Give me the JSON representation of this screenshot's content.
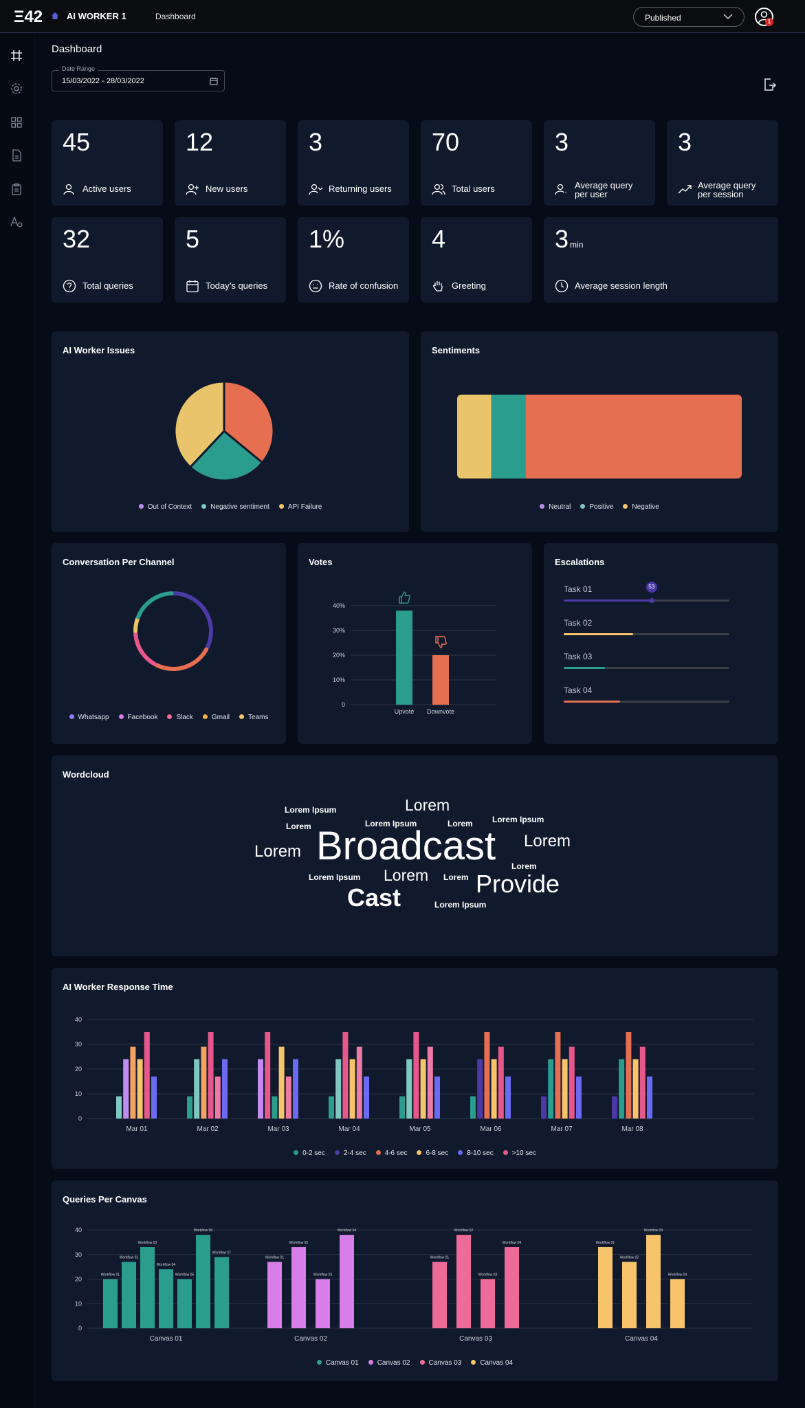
{
  "header": {
    "logo": "Ξ42",
    "app_name": "AI WORKER 1",
    "breadcrumb": "Dashboard",
    "status": "Published",
    "notification_count": "1",
    "icons": [
      "home-icon",
      "chevron-down-icon",
      "user-avatar-icon"
    ]
  },
  "sidebar": {
    "items": [
      {
        "icon": "frame-icon"
      },
      {
        "icon": "gear-icon"
      },
      {
        "icon": "grid-icon"
      },
      {
        "icon": "document-icon"
      },
      {
        "icon": "clipboard-icon"
      },
      {
        "icon": "font-settings-icon"
      }
    ]
  },
  "page": {
    "title": "Dashboard",
    "date_range_label": "Date Range",
    "date_range_value": "15/03/2022 - 28/03/2022"
  },
  "stats": [
    {
      "value": "45",
      "unit": "",
      "label": "Active users",
      "icon": "user-icon"
    },
    {
      "value": "12",
      "unit": "",
      "label": "New users",
      "icon": "user-plus-icon"
    },
    {
      "value": "3",
      "unit": "",
      "label": "Returning users",
      "icon": "user-return-icon"
    },
    {
      "value": "70",
      "unit": "",
      "label": "Total users",
      "icon": "users-icon"
    },
    {
      "value": "3",
      "unit": "",
      "label": "Average query per user",
      "label_l1": "Average query",
      "label_l2": "per user",
      "icon": "user-query-icon"
    },
    {
      "value": "3",
      "unit": "",
      "label": "Average query per session",
      "label_l1": "Average query",
      "label_l2": "per session",
      "icon": "trend-up-icon"
    },
    {
      "value": "32",
      "unit": "",
      "label": "Total queries",
      "icon": "question-circle-icon"
    },
    {
      "value": "5",
      "unit": "",
      "label": "Today’s queries",
      "icon": "calendar-icon"
    },
    {
      "value": "1%",
      "unit": "",
      "label": "Rate of confusion",
      "icon": "confused-face-icon"
    },
    {
      "value": "4",
      "unit": "",
      "label": "Greeting",
      "icon": "wave-hand-icon"
    },
    {
      "value": "3",
      "unit": "min",
      "label": "Average session length",
      "icon": "clock-icon"
    }
  ],
  "colors": {
    "teal": "#2a9d8f",
    "orange": "#e76f51",
    "yellow": "#e9c46a",
    "purple": "#c08cf0",
    "violet": "#7f66f2",
    "indigo": "#4b3aa6",
    "pink": "#e8578a",
    "peach": "#f4a261"
  },
  "panels": {
    "issues_title": "AI Worker Issues",
    "sentiments_title": "Sentiments",
    "channel_title": "Conversation Per Channel",
    "votes_title": "Votes",
    "escalations_title": "Escalations",
    "wordcloud_title": "Wordcloud",
    "response_title": "AI Worker Response Time",
    "queries_title": "Queries Per Canvas"
  },
  "chart_data": [
    {
      "id": "issues",
      "type": "pie",
      "title": "AI Worker Issues",
      "labels": [
        "Out of Context",
        "Negative sentiment",
        "API Failure"
      ],
      "values": [
        36,
        26,
        38
      ],
      "colors": [
        "#e76f51",
        "#2a9d8f",
        "#e9c46a"
      ],
      "legend": [
        {
          "label": "Out of Context",
          "color": "#c08cf0"
        },
        {
          "label": "Negative sentiment",
          "color": "#7ec8c0"
        },
        {
          "label": "API Failure",
          "color": "#f7c46c"
        }
      ],
      "legend_position": "bottom"
    },
    {
      "id": "sentiments",
      "type": "bar",
      "title": "Sentiments",
      "stacked": true,
      "orientation": "horizontal",
      "categories": [
        "Neutral",
        "Positive",
        "Negative"
      ],
      "values": [
        12,
        12,
        76
      ],
      "colors": [
        "#e9c46a",
        "#2a9d8f",
        "#e76f51"
      ],
      "legend": [
        {
          "label": "Neutral",
          "color": "#c08cf0"
        },
        {
          "label": "Positive",
          "color": "#7ec8c0"
        },
        {
          "label": "Negative",
          "color": "#f7c46c"
        }
      ],
      "legend_position": "bottom"
    },
    {
      "id": "channels",
      "type": "pie",
      "donut": true,
      "title": "Conversation Per Channel",
      "labels": [
        "Whatsapp",
        "Facebook",
        "Slack",
        "Gmail",
        "Teams"
      ],
      "values": [
        33,
        25,
        17,
        6,
        19
      ],
      "colors": [
        "#4b3aa6",
        "#e76f51",
        "#e8578a",
        "#e9c46a",
        "#2a9d8f"
      ],
      "legend": [
        {
          "label": "Whatsapp",
          "color": "#8f7cf4"
        },
        {
          "label": "Facebook",
          "color": "#d77ee8"
        },
        {
          "label": "Slack",
          "color": "#ee6a98"
        },
        {
          "label": "Gmail",
          "color": "#f7b24f"
        },
        {
          "label": "Teams",
          "color": "#f7c46c"
        }
      ],
      "legend_position": "bottom"
    },
    {
      "id": "votes",
      "type": "bar",
      "title": "Votes",
      "categories": [
        "Upvote",
        "Downvote"
      ],
      "values": [
        38,
        20
      ],
      "colors": [
        "#2a9d8f",
        "#e76f51"
      ],
      "icons": [
        "thumbs-up-icon",
        "thumbs-down-icon"
      ],
      "yticks": [
        "0",
        "10%",
        "20%",
        "30%",
        "40%"
      ],
      "ylim": [
        0,
        40
      ],
      "grid": true
    },
    {
      "id": "response_time",
      "type": "bar",
      "title": "AI Worker Response Time",
      "categories": [
        "Mar 01",
        "Mar 02",
        "Mar 03",
        "Mar 04",
        "Mar 05",
        "Mar 06",
        "Mar 07",
        "Mar 08"
      ],
      "series_legend": [
        {
          "name": "0-2 sec",
          "color": "#2a9d8f"
        },
        {
          "name": "2-4 sec",
          "color": "#4b3aa6"
        },
        {
          "name": "4-6 sec",
          "color": "#e76f51"
        },
        {
          "name": "6-8 sec",
          "color": "#f7c46c"
        },
        {
          "name": "8-10 sec",
          "color": "#6a6af2"
        },
        {
          "name": ">10 sec",
          "color": "#e8578a"
        }
      ],
      "groups": [
        [
          {
            "v": 9,
            "c": "#7ec8c0"
          },
          {
            "v": 24,
            "c": "#c08cf0"
          },
          {
            "v": 29,
            "c": "#f4a261"
          },
          {
            "v": 24,
            "c": "#f7c46c"
          },
          {
            "v": 35,
            "c": "#e8578a"
          },
          {
            "v": 17,
            "c": "#6a6af2"
          }
        ],
        [
          {
            "v": 9,
            "c": "#2a9d8f"
          },
          {
            "v": 24,
            "c": "#7ec8c0"
          },
          {
            "v": 29,
            "c": "#f4a261"
          },
          {
            "v": 35,
            "c": "#e8578a"
          },
          {
            "v": 17,
            "c": "#ee7ba5"
          },
          {
            "v": 24,
            "c": "#6a6af2"
          }
        ],
        [
          {
            "v": 24,
            "c": "#c08cf0"
          },
          {
            "v": 35,
            "c": "#e8578a"
          },
          {
            "v": 9,
            "c": "#2a9d8f"
          },
          {
            "v": 29,
            "c": "#f7c46c"
          },
          {
            "v": 17,
            "c": "#ee7ba5"
          },
          {
            "v": 24,
            "c": "#6a6af2"
          }
        ],
        [
          {
            "v": 9,
            "c": "#2a9d8f"
          },
          {
            "v": 24,
            "c": "#7ec8c0"
          },
          {
            "v": 35,
            "c": "#e8578a"
          },
          {
            "v": 24,
            "c": "#f7c46c"
          },
          {
            "v": 29,
            "c": "#ee7ba5"
          },
          {
            "v": 17,
            "c": "#6a6af2"
          }
        ],
        [
          {
            "v": 9,
            "c": "#2a9d8f"
          },
          {
            "v": 24,
            "c": "#7ec8c0"
          },
          {
            "v": 35,
            "c": "#e8578a"
          },
          {
            "v": 24,
            "c": "#f7c46c"
          },
          {
            "v": 29,
            "c": "#ee7ba5"
          },
          {
            "v": 17,
            "c": "#6a6af2"
          }
        ],
        [
          {
            "v": 9,
            "c": "#2a9d8f"
          },
          {
            "v": 24,
            "c": "#4b3aa6"
          },
          {
            "v": 35,
            "c": "#e76f51"
          },
          {
            "v": 24,
            "c": "#f7c46c"
          },
          {
            "v": 29,
            "c": "#e8578a"
          },
          {
            "v": 17,
            "c": "#6a6af2"
          }
        ],
        [
          {
            "v": 9,
            "c": "#4b3aa6"
          },
          {
            "v": 24,
            "c": "#2a9d8f"
          },
          {
            "v": 35,
            "c": "#e76f51"
          },
          {
            "v": 24,
            "c": "#f7c46c"
          },
          {
            "v": 29,
            "c": "#e8578a"
          },
          {
            "v": 17,
            "c": "#6a6af2"
          }
        ],
        [
          {
            "v": 9,
            "c": "#4b3aa6"
          },
          {
            "v": 24,
            "c": "#2a9d8f"
          },
          {
            "v": 35,
            "c": "#e76f51"
          },
          {
            "v": 24,
            "c": "#f7c46c"
          },
          {
            "v": 29,
            "c": "#e8578a"
          },
          {
            "v": 17,
            "c": "#6a6af2"
          }
        ]
      ],
      "yticks": [
        "0",
        "10",
        "20",
        "30",
        "40"
      ],
      "ylim": [
        0,
        40
      ],
      "grid": true,
      "legend_position": "bottom"
    },
    {
      "id": "queries_per_canvas",
      "type": "bar",
      "title": "Queries Per Canvas",
      "categories": [
        "Canvas 01",
        "Canvas 02",
        "Canvas 03",
        "Canvas 04"
      ],
      "series_legend": [
        {
          "name": "Canvas 01",
          "color": "#2a9d8f"
        },
        {
          "name": "Canvas 02",
          "color": "#d77ee8"
        },
        {
          "name": "Canvas 03",
          "color": "#ee6a98"
        },
        {
          "name": "Canvas 04",
          "color": "#f7c46c"
        }
      ],
      "groups": [
        {
          "color": "#2a9d8f",
          "bars": [
            {
              "label": "Workflow 01",
              "v": 20
            },
            {
              "label": "Workflow 02",
              "v": 27
            },
            {
              "label": "Workflow 03",
              "v": 33
            },
            {
              "label": "Workflow 04",
              "v": 24
            },
            {
              "label": "Workflow 05",
              "v": 20
            },
            {
              "label": "Workflow 06",
              "v": 38
            },
            {
              "label": "Workflow 07",
              "v": 29
            }
          ]
        },
        {
          "color": "#d77ee8",
          "bars": [
            {
              "label": "Workflow 01",
              "v": 27
            },
            {
              "label": "Workflow 02",
              "v": 33
            },
            {
              "label": "Workflow 03",
              "v": 20
            },
            {
              "label": "Workflow 04",
              "v": 38
            }
          ]
        },
        {
          "color": "#ee6a98",
          "bars": [
            {
              "label": "Workflow 01",
              "v": 27
            },
            {
              "label": "Workflow 02",
              "v": 38
            },
            {
              "label": "Workflow 03",
              "v": 20
            },
            {
              "label": "Workflow 04",
              "v": 33
            }
          ]
        },
        {
          "color": "#f7c46c",
          "bars": [
            {
              "label": "Workflow 01",
              "v": 33
            },
            {
              "label": "Workflow 02",
              "v": 27
            },
            {
              "label": "Workflow 03",
              "v": 38
            },
            {
              "label": "Workflow 04",
              "v": 20
            }
          ]
        }
      ],
      "yticks": [
        "0",
        "10",
        "20",
        "30",
        "40"
      ],
      "ylim": [
        0,
        40
      ],
      "grid": true,
      "legend_position": "bottom"
    }
  ],
  "escalations": [
    {
      "name": "Task 01",
      "progress": 0.53,
      "badge": "53",
      "color": "#4b3aa6"
    },
    {
      "name": "Task 02",
      "progress": 0.42,
      "color": "#f7c46c"
    },
    {
      "name": "Task 03",
      "progress": 0.25,
      "color": "#2a9d8f"
    },
    {
      "name": "Task 04",
      "progress": 0.34,
      "color": "#e76f51"
    }
  ],
  "wordcloud": [
    {
      "text": "Lorem Ipsum",
      "weight": 1
    },
    {
      "text": "Lorem",
      "weight": 3
    },
    {
      "text": "Lorem",
      "weight": 1
    },
    {
      "text": "Lorem Ipsum",
      "weight": 1
    },
    {
      "text": "Lorem",
      "weight": 1
    },
    {
      "text": "Lorem Ipsum",
      "weight": 1
    },
    {
      "text": "Lorem",
      "weight": 3
    },
    {
      "text": "Broadcast",
      "weight": 8
    },
    {
      "text": "Lorem",
      "weight": 3
    },
    {
      "text": "Lorem",
      "weight": 1
    },
    {
      "text": "Lorem Ipsum",
      "weight": 1
    },
    {
      "text": "Lorem",
      "weight": 3
    },
    {
      "text": "Lorem",
      "weight": 1
    },
    {
      "text": "Provide",
      "weight": 5
    },
    {
      "text": "Cast",
      "weight": 5
    },
    {
      "text": "Lorem Ipsum",
      "weight": 1
    }
  ]
}
